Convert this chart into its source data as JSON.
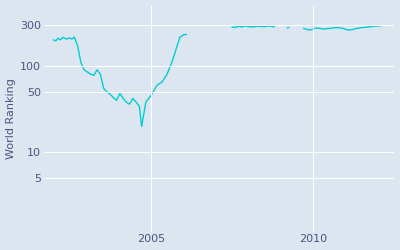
{
  "ylabel": "World Ranking",
  "line_color": "#00CED1",
  "bg_color": "#dce6f0",
  "fig_bg_color": "#dce6f0",
  "yticks": [
    5,
    10,
    50,
    100,
    300
  ],
  "xtick_years": [
    2005,
    2010
  ],
  "data": {
    "phase1": {
      "x": [
        2002.0,
        2002.08,
        2002.15,
        2002.22,
        2002.3,
        2002.4,
        2002.5,
        2002.58,
        2002.65
      ],
      "y": [
        200,
        195,
        210,
        200,
        215,
        205,
        210,
        205,
        215
      ]
    },
    "phase2": {
      "x": [
        2002.65,
        2002.75,
        2002.85,
        2002.95,
        2003.05,
        2003.15,
        2003.25
      ],
      "y": [
        215,
        170,
        110,
        90,
        85,
        80,
        78
      ]
    },
    "phase3": {
      "x": [
        2003.25,
        2003.35,
        2003.45,
        2003.55,
        2003.65,
        2003.75,
        2003.85,
        2003.95,
        2004.05,
        2004.15,
        2004.25,
        2004.35,
        2004.45,
        2004.55,
        2004.65,
        2004.72
      ],
      "y": [
        78,
        90,
        80,
        55,
        50,
        47,
        43,
        40,
        48,
        42,
        38,
        36,
        42,
        38,
        34,
        20
      ]
    },
    "phase4": {
      "x": [
        2004.72,
        2004.85,
        2005.0,
        2005.1,
        2005.2,
        2005.35,
        2005.5,
        2005.65,
        2005.8,
        2005.9,
        2006.0,
        2006.1
      ],
      "y": [
        20,
        38,
        45,
        52,
        60,
        65,
        80,
        110,
        165,
        215,
        228,
        232
      ]
    },
    "phase5": {
      "x": [
        2007.5,
        2007.6,
        2007.7,
        2007.8,
        2007.9,
        2008.0,
        2008.15,
        2008.3,
        2008.5,
        2008.65,
        2008.8
      ],
      "y": [
        283,
        278,
        288,
        283,
        290,
        285,
        283,
        288,
        285,
        290,
        283
      ]
    },
    "phase6": {
      "x": [
        2009.2,
        2009.25
      ],
      "y": [
        275,
        278
      ]
    },
    "phase7": {
      "x": [
        2009.7,
        2009.8,
        2009.9,
        2010.0,
        2010.1,
        2010.2,
        2010.3,
        2010.45,
        2010.6,
        2010.75,
        2010.9,
        2011.0,
        2011.1,
        2011.2,
        2011.3,
        2011.5,
        2011.7,
        2011.85,
        2012.0,
        2012.1
      ],
      "y": [
        272,
        265,
        260,
        268,
        275,
        272,
        268,
        270,
        275,
        278,
        273,
        265,
        260,
        263,
        270,
        278,
        282,
        288,
        290,
        293
      ]
    }
  },
  "xlim": [
    2001.7,
    2012.5
  ],
  "ylim_log": [
    1.2,
    500
  ],
  "linewidth": 1.0,
  "grid_color": "#ffffff",
  "tick_color": "#4a5580",
  "ylabel_fontsize": 8,
  "tick_fontsize": 8
}
